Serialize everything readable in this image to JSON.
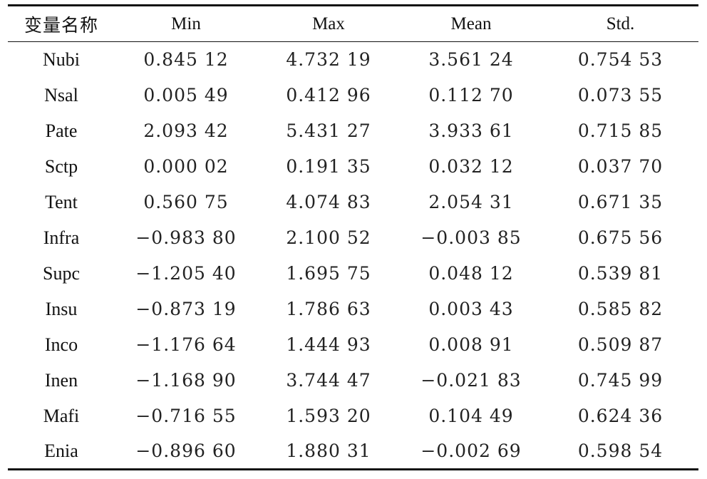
{
  "table": {
    "headers": [
      "变量名称",
      "Min",
      "Max",
      "Mean",
      "Std."
    ],
    "rows": [
      [
        "Nubi",
        "0.845 12",
        "4.732 19",
        "3.561 24",
        "0.754 53"
      ],
      [
        "Nsal",
        "0.005 49",
        "0.412 96",
        "0.112 70",
        "0.073 55"
      ],
      [
        "Pate",
        "2.093 42",
        "5.431 27",
        "3.933 61",
        "0.715 85"
      ],
      [
        "Sctp",
        "0.000 02",
        "0.191 35",
        "0.032 12",
        "0.037 70"
      ],
      [
        "Tent",
        "0.560 75",
        "4.074 83",
        "2.054 31",
        "0.671 35"
      ],
      [
        "Infra",
        "−0.983 80",
        "2.100 52",
        "−0.003 85",
        "0.675 56"
      ],
      [
        "Supc",
        "−1.205 40",
        "1.695 75",
        "0.048 12",
        "0.539 81"
      ],
      [
        "Insu",
        "−0.873 19",
        "1.786 63",
        "0.003 43",
        "0.585 82"
      ],
      [
        "Inco",
        "−1.176 64",
        "1.444 93",
        "0.008 91",
        "0.509 87"
      ],
      [
        "Inen",
        "−1.168 90",
        "3.744 47",
        "−0.021 83",
        "0.745 99"
      ],
      [
        "Mafi",
        "−0.716 55",
        "1.593 20",
        "0.104 49",
        "0.624 36"
      ],
      [
        "Enia",
        "−0.896 60",
        "1.880 31",
        "−0.002 69",
        "0.598 54"
      ]
    ]
  }
}
